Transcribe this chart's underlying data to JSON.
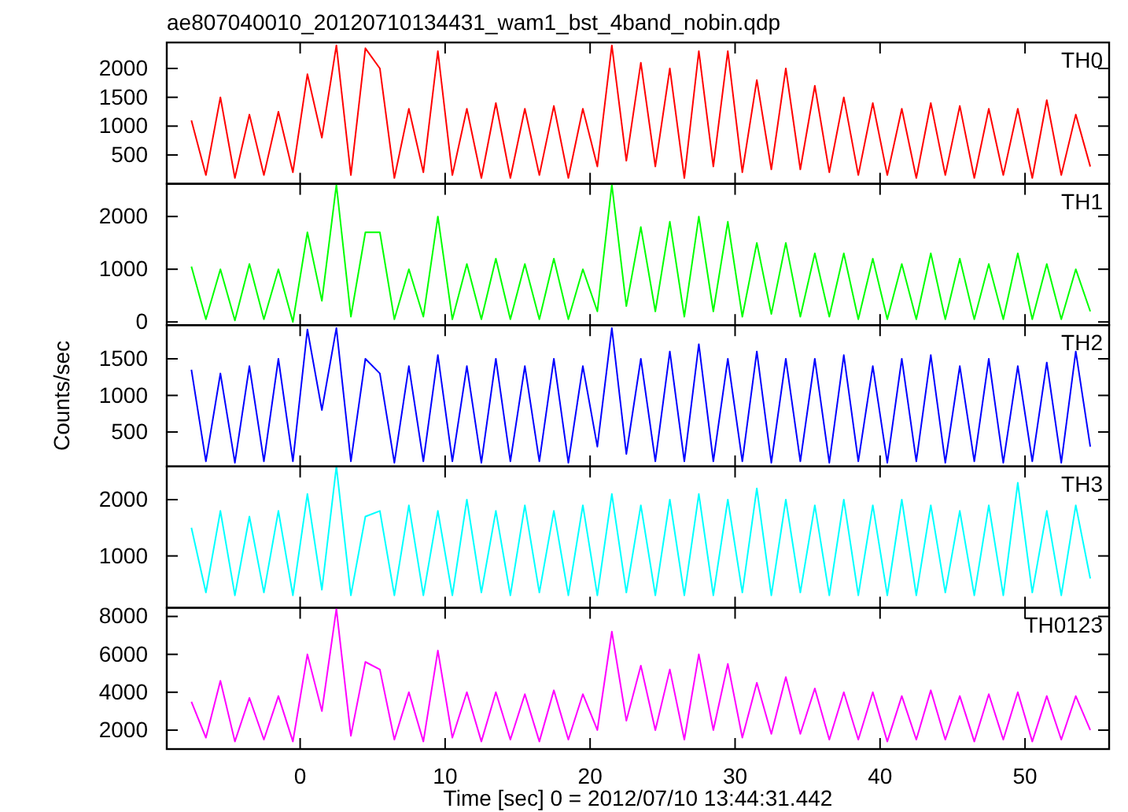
{
  "chart_data": [
    {
      "type": "line",
      "title": "ae807040010_20120710134431_wam1_bst_4band_nobin.qdp",
      "tick_labels": "y",
      "xlim": [
        -9.2,
        55.8
      ],
      "xticks": [
        0,
        10,
        20,
        30,
        40,
        50
      ],
      "ylim": [
        0,
        2450
      ],
      "yticks": [
        500,
        1000,
        1500,
        2000
      ],
      "x": [
        -7.5,
        -6.5,
        -5.5,
        -4.5,
        -3.5,
        -2.5,
        -1.5,
        -0.5,
        0.5,
        1.5,
        2.5,
        3.5,
        4.5,
        5.5,
        6.5,
        7.5,
        8.5,
        9.5,
        10.5,
        11.5,
        12.5,
        13.5,
        14.5,
        15.5,
        16.5,
        17.5,
        18.5,
        19.5,
        20.5,
        21.5,
        22.5,
        23.5,
        24.5,
        25.5,
        26.5,
        27.5,
        28.5,
        29.5,
        30.5,
        31.5,
        32.5,
        33.5,
        34.5,
        35.5,
        36.5,
        37.5,
        38.5,
        39.5,
        40.5,
        41.5,
        42.5,
        43.5,
        44.5,
        45.5,
        46.5,
        47.5,
        48.5,
        49.5,
        50.5,
        51.5,
        52.5,
        53.5,
        54.5
      ],
      "series": [
        {
          "name": "TH0",
          "color": "#ff0000",
          "values": [
            1100,
            150,
            1500,
            100,
            1200,
            150,
            1250,
            200,
            1900,
            800,
            2400,
            150,
            2350,
            2000,
            100,
            1300,
            200,
            2300,
            150,
            1300,
            100,
            1400,
            100,
            1300,
            150,
            1350,
            100,
            1300,
            300,
            2400,
            400,
            2100,
            300,
            2000,
            100,
            2300,
            300,
            2300,
            200,
            1800,
            250,
            2000,
            250,
            1700,
            200,
            1500,
            150,
            1400,
            150,
            1300,
            100,
            1400,
            150,
            1350,
            100,
            1300,
            150,
            1300,
            100,
            1450,
            150,
            1200,
            300
          ]
        }
      ]
    },
    {
      "type": "line",
      "tick_labels": "y",
      "xlim": [
        -9.2,
        55.8
      ],
      "xticks": [
        0,
        10,
        20,
        30,
        40,
        50
      ],
      "ylim": [
        -60,
        2620
      ],
      "yticks": [
        0,
        1000,
        2000
      ],
      "x": [
        -7.5,
        -6.5,
        -5.5,
        -4.5,
        -3.5,
        -2.5,
        -1.5,
        -0.5,
        0.5,
        1.5,
        2.5,
        3.5,
        4.5,
        5.5,
        6.5,
        7.5,
        8.5,
        9.5,
        10.5,
        11.5,
        12.5,
        13.5,
        14.5,
        15.5,
        16.5,
        17.5,
        18.5,
        19.5,
        20.5,
        21.5,
        22.5,
        23.5,
        24.5,
        25.5,
        26.5,
        27.5,
        28.5,
        29.5,
        30.5,
        31.5,
        32.5,
        33.5,
        34.5,
        35.5,
        36.5,
        37.5,
        38.5,
        39.5,
        40.5,
        41.5,
        42.5,
        43.5,
        44.5,
        45.5,
        46.5,
        47.5,
        48.5,
        49.5,
        50.5,
        51.5,
        52.5,
        53.5,
        54.5
      ],
      "series": [
        {
          "name": "TH1",
          "color": "#00ff00",
          "values": [
            1050,
            50,
            1000,
            30,
            1100,
            50,
            1000,
            0,
            1700,
            400,
            2600,
            100,
            1700,
            1700,
            50,
            1000,
            100,
            2000,
            50,
            1100,
            50,
            1200,
            50,
            1100,
            50,
            1200,
            50,
            1000,
            200,
            2600,
            300,
            1800,
            200,
            1900,
            100,
            2000,
            200,
            1900,
            100,
            1500,
            150,
            1500,
            100,
            1300,
            100,
            1300,
            50,
            1200,
            50,
            1100,
            50,
            1300,
            50,
            1200,
            50,
            1100,
            50,
            1300,
            50,
            1100,
            50,
            1000,
            200
          ]
        }
      ]
    },
    {
      "type": "line",
      "tick_labels": "y",
      "ylabel": "Counts/sec",
      "xlim": [
        -9.2,
        55.8
      ],
      "xticks": [
        0,
        10,
        20,
        30,
        40,
        50
      ],
      "ylim": [
        30,
        1960
      ],
      "yticks": [
        500,
        1000,
        1500
      ],
      "x": [
        -7.5,
        -6.5,
        -5.5,
        -4.5,
        -3.5,
        -2.5,
        -1.5,
        -0.5,
        0.5,
        1.5,
        2.5,
        3.5,
        4.5,
        5.5,
        6.5,
        7.5,
        8.5,
        9.5,
        10.5,
        11.5,
        12.5,
        13.5,
        14.5,
        15.5,
        16.5,
        17.5,
        18.5,
        19.5,
        20.5,
        21.5,
        22.5,
        23.5,
        24.5,
        25.5,
        26.5,
        27.5,
        28.5,
        29.5,
        30.5,
        31.5,
        32.5,
        33.5,
        34.5,
        35.5,
        36.5,
        37.5,
        38.5,
        39.5,
        40.5,
        41.5,
        42.5,
        43.5,
        44.5,
        45.5,
        46.5,
        47.5,
        48.5,
        49.5,
        50.5,
        51.5,
        52.5,
        53.5,
        54.5
      ],
      "series": [
        {
          "name": "TH2",
          "color": "#0000ff",
          "values": [
            1350,
            100,
            1300,
            80,
            1400,
            100,
            1500,
            100,
            1900,
            800,
            1920,
            100,
            1500,
            1300,
            80,
            1400,
            100,
            1550,
            100,
            1400,
            80,
            1500,
            100,
            1400,
            100,
            1500,
            80,
            1400,
            300,
            1920,
            200,
            1500,
            100,
            1600,
            100,
            1700,
            100,
            1500,
            100,
            1600,
            80,
            1500,
            100,
            1500,
            80,
            1550,
            100,
            1400,
            80,
            1500,
            100,
            1550,
            80,
            1400,
            100,
            1500,
            80,
            1400,
            100,
            1450,
            80,
            1600,
            300
          ]
        }
      ]
    },
    {
      "type": "line",
      "tick_labels": "y",
      "xlim": [
        -9.2,
        55.8
      ],
      "xticks": [
        0,
        10,
        20,
        30,
        40,
        50
      ],
      "ylim": [
        80,
        2590
      ],
      "yticks": [
        1000,
        2000
      ],
      "x": [
        -7.5,
        -6.5,
        -5.5,
        -4.5,
        -3.5,
        -2.5,
        -1.5,
        -0.5,
        0.5,
        1.5,
        2.5,
        3.5,
        4.5,
        5.5,
        6.5,
        7.5,
        8.5,
        9.5,
        10.5,
        11.5,
        12.5,
        13.5,
        14.5,
        15.5,
        16.5,
        17.5,
        18.5,
        19.5,
        20.5,
        21.5,
        22.5,
        23.5,
        24.5,
        25.5,
        26.5,
        27.5,
        28.5,
        29.5,
        30.5,
        31.5,
        32.5,
        33.5,
        34.5,
        35.5,
        36.5,
        37.5,
        38.5,
        39.5,
        40.5,
        41.5,
        42.5,
        43.5,
        44.5,
        45.5,
        46.5,
        47.5,
        48.5,
        49.5,
        50.5,
        51.5,
        52.5,
        53.5,
        54.5
      ],
      "series": [
        {
          "name": "TH3",
          "color": "#00ffff",
          "values": [
            1500,
            350,
            1800,
            300,
            1700,
            350,
            1800,
            300,
            2100,
            400,
            2590,
            300,
            1700,
            1800,
            300,
            1900,
            300,
            1800,
            300,
            2000,
            350,
            1800,
            300,
            1900,
            350,
            1800,
            300,
            1900,
            300,
            2100,
            350,
            1900,
            300,
            2000,
            300,
            2100,
            300,
            2000,
            350,
            2200,
            300,
            2000,
            350,
            1900,
            300,
            2000,
            300,
            1900,
            300,
            2000,
            300,
            1900,
            350,
            1800,
            300,
            1900,
            300,
            2300,
            350,
            1800,
            300,
            1900,
            600
          ]
        }
      ]
    },
    {
      "type": "line",
      "xlabel": "Time [sec] 0 = 2012/07/10 13:44:31.442",
      "xlim": [
        -9.2,
        55.8
      ],
      "xticks": [
        0,
        10,
        20,
        30,
        40,
        50
      ],
      "ylim": [
        1000,
        8460
      ],
      "yticks": [
        2000,
        4000,
        6000,
        8000
      ],
      "x": [
        -7.5,
        -6.5,
        -5.5,
        -4.5,
        -3.5,
        -2.5,
        -1.5,
        -0.5,
        0.5,
        1.5,
        2.5,
        3.5,
        4.5,
        5.5,
        6.5,
        7.5,
        8.5,
        9.5,
        10.5,
        11.5,
        12.5,
        13.5,
        14.5,
        15.5,
        16.5,
        17.5,
        18.5,
        19.5,
        20.5,
        21.5,
        22.5,
        23.5,
        24.5,
        25.5,
        26.5,
        27.5,
        28.5,
        29.5,
        30.5,
        31.5,
        32.5,
        33.5,
        34.5,
        35.5,
        36.5,
        37.5,
        38.5,
        39.5,
        40.5,
        41.5,
        42.5,
        43.5,
        44.5,
        45.5,
        46.5,
        47.5,
        48.5,
        49.5,
        50.5,
        51.5,
        52.5,
        53.5,
        54.5
      ],
      "series": [
        {
          "name": "TH0123",
          "color": "#ff00ff",
          "values": [
            3500,
            1600,
            4600,
            1400,
            3700,
            1500,
            3800,
            1400,
            6000,
            3000,
            8400,
            1700,
            5600,
            5200,
            1500,
            4000,
            1400,
            6200,
            1600,
            4000,
            1400,
            4000,
            1500,
            3900,
            1400,
            4100,
            1500,
            3900,
            2000,
            7200,
            2500,
            5400,
            2000,
            5200,
            1500,
            6000,
            2000,
            5500,
            1600,
            4500,
            1800,
            4800,
            1800,
            4200,
            1500,
            4000,
            1500,
            4000,
            1400,
            3800,
            1500,
            4100,
            1500,
            3800,
            1400,
            3900,
            1500,
            4000,
            1400,
            3800,
            1500,
            3800,
            2000
          ]
        }
      ]
    }
  ]
}
